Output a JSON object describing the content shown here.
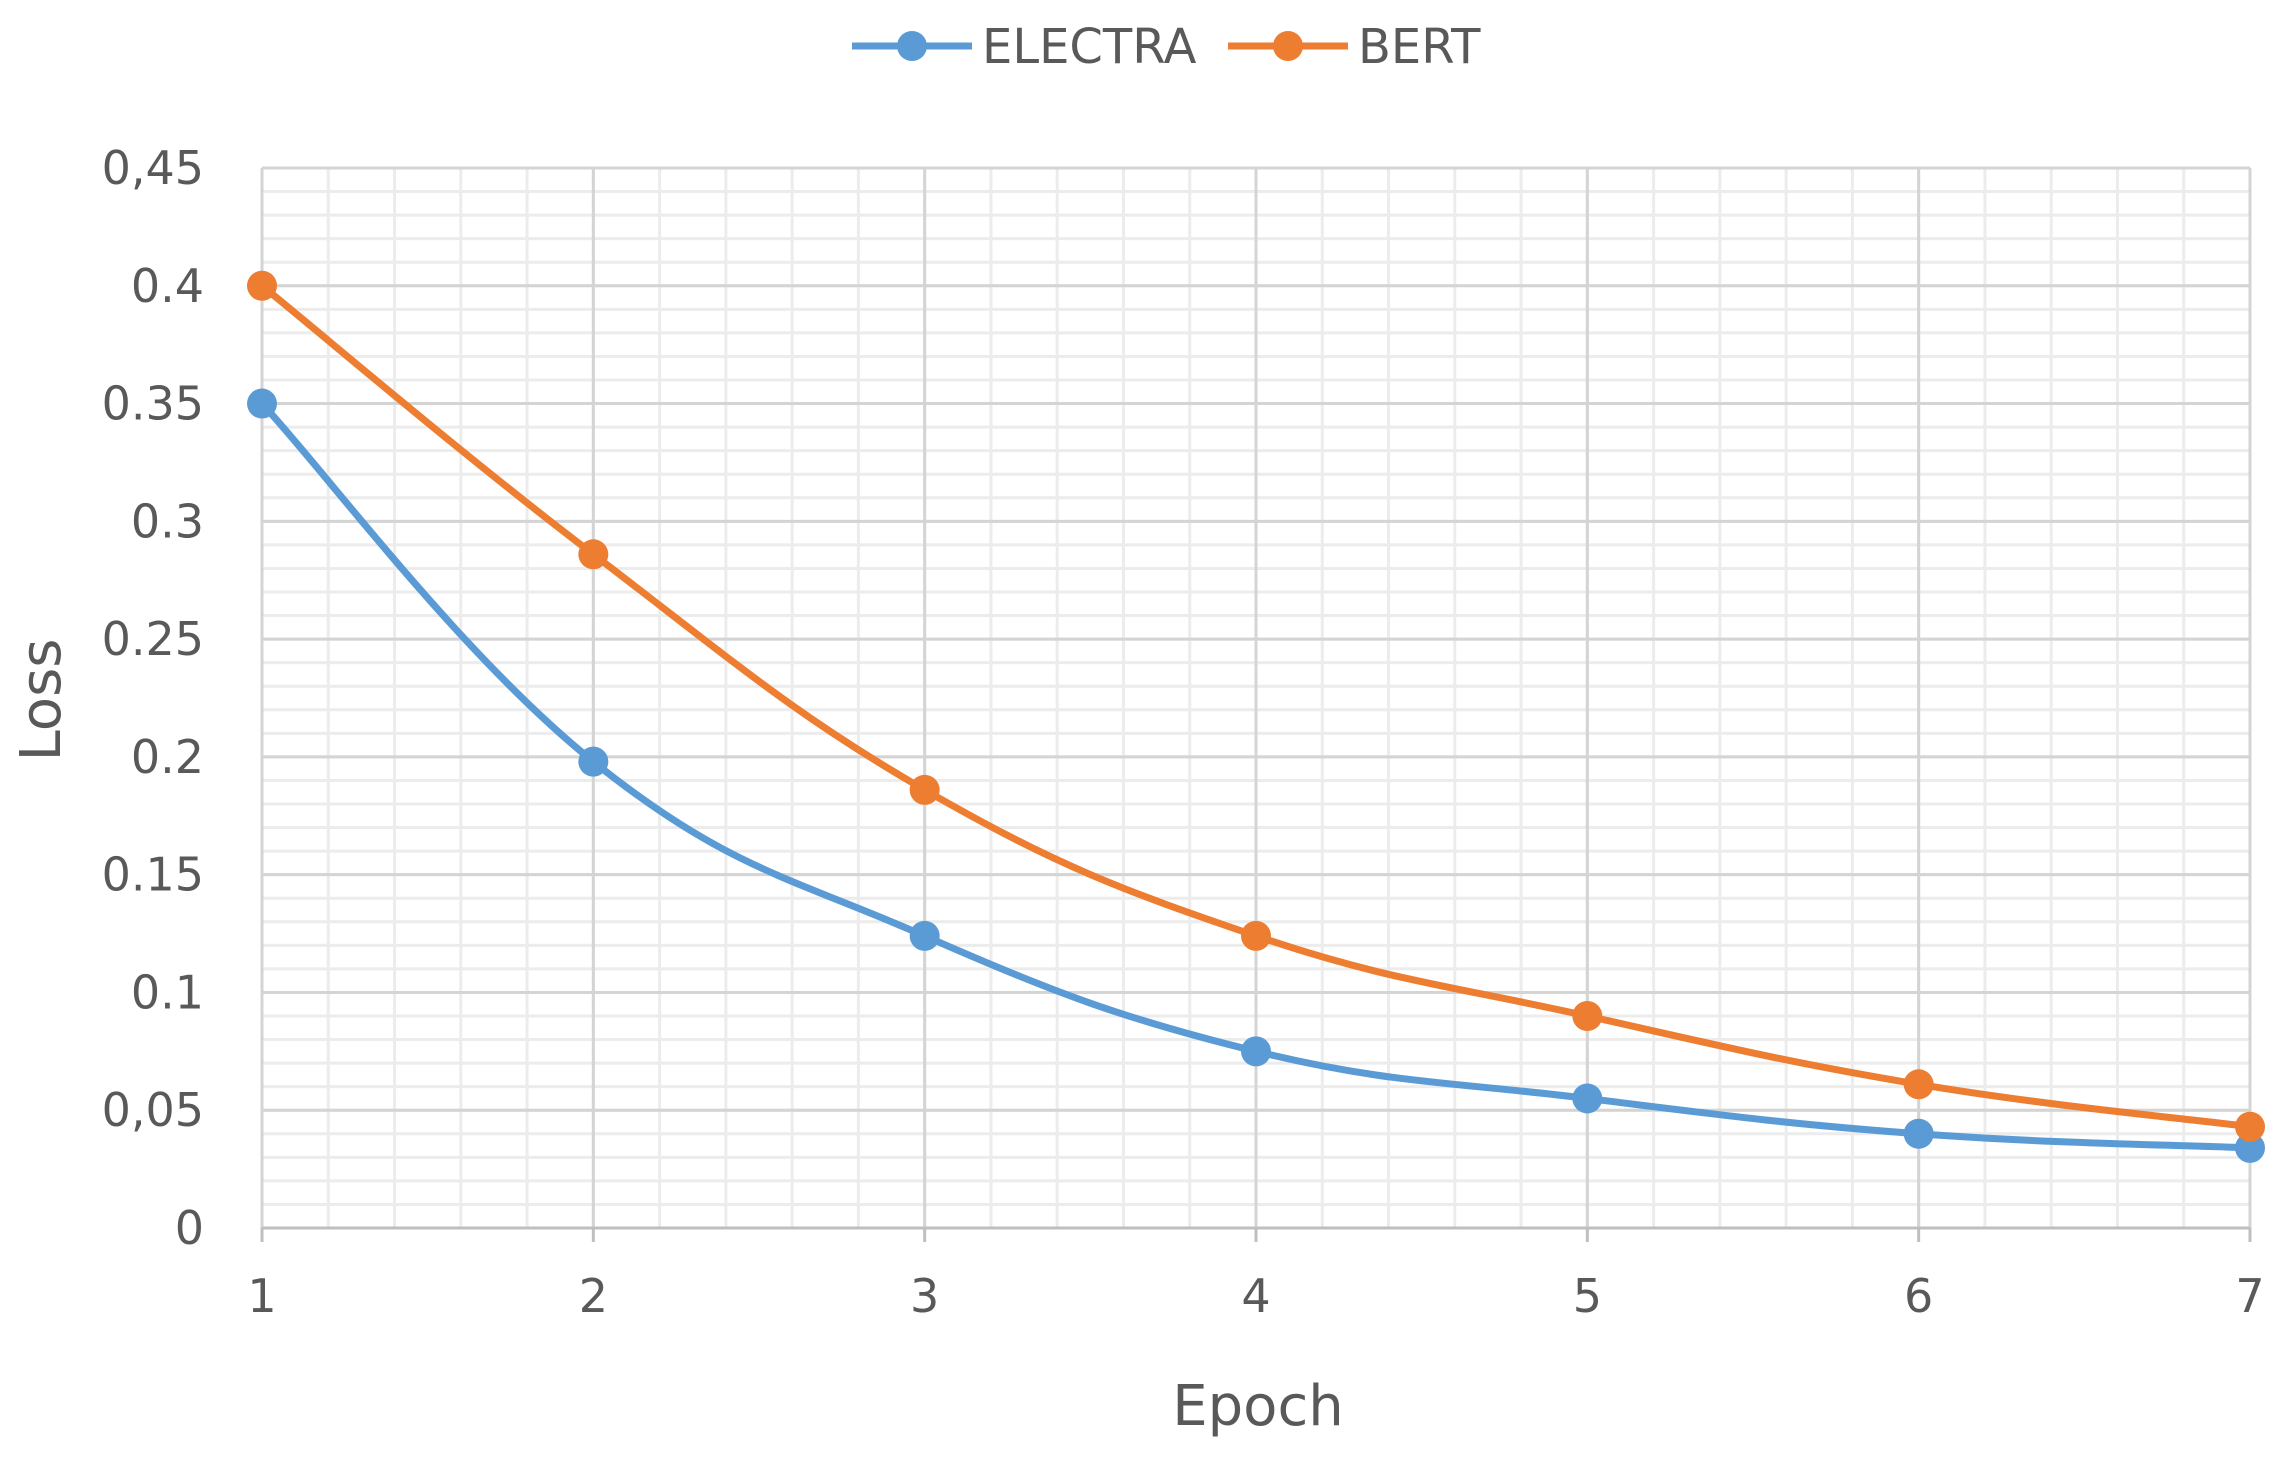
{
  "chart_data": {
    "type": "line",
    "title": "",
    "xlabel": "Epoch",
    "ylabel": "Loss",
    "x": [
      1,
      2,
      3,
      4,
      5,
      6,
      7
    ],
    "x_tick_labels": [
      "1",
      "2",
      "3",
      "4",
      "5",
      "6",
      "7"
    ],
    "xlim": [
      1,
      7
    ],
    "ylim": [
      0,
      0.45
    ],
    "y_ticks": [
      0,
      0.05,
      0.1,
      0.15,
      0.2,
      0.25,
      0.3,
      0.35,
      0.4,
      0.45
    ],
    "y_tick_labels": [
      "0",
      "0,05",
      "0.1",
      "0.15",
      "0.2",
      "0.25",
      "0.3",
      "0.35",
      "0.4",
      "0,45"
    ],
    "grid": true,
    "minor_grid": true,
    "smooth": true,
    "legend_position": "top-center",
    "series": [
      {
        "name": "ELECTRA",
        "color": "#5B9BD5",
        "values": [
          0.35,
          0.198,
          0.124,
          0.075,
          0.055,
          0.04,
          0.034
        ]
      },
      {
        "name": "BERT",
        "color": "#ED7D31",
        "values": [
          0.4,
          0.286,
          0.186,
          0.124,
          0.09,
          0.061,
          0.043
        ]
      }
    ]
  }
}
